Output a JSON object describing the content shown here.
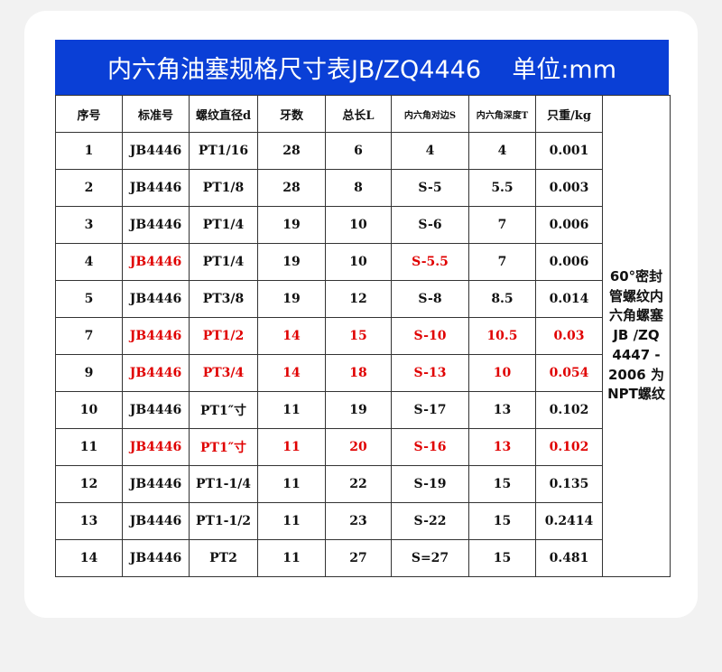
{
  "title": "内六角油塞规格尺寸表JB/ZQ4446    单位:mm",
  "headers": [
    "序号",
    "标准号",
    "螺纹直径d",
    "牙数",
    "总长L",
    "内六角对边S",
    "内六角深度T",
    "只重/kg"
  ],
  "note": "60°密封管螺纹内六角螺塞 JB /ZQ 4447 - 2006 为NPT螺纹",
  "highlight_color": "#e00000",
  "rows": [
    {
      "cells": [
        "1",
        "JB4446",
        "PT1/16",
        "28",
        "6",
        "4",
        "4",
        "0.001"
      ],
      "red": []
    },
    {
      "cells": [
        "2",
        "JB4446",
        "PT1/8",
        "28",
        "8",
        "S-5",
        "5.5",
        "0.003"
      ],
      "red": []
    },
    {
      "cells": [
        "3",
        "JB4446",
        "PT1/4",
        "19",
        "10",
        "S-6",
        "7",
        "0.006"
      ],
      "red": []
    },
    {
      "cells": [
        "4",
        "JB4446",
        "PT1/4",
        "19",
        "10",
        "S-5.5",
        "7",
        "0.006"
      ],
      "red": [
        1,
        5
      ]
    },
    {
      "cells": [
        "5",
        "JB4446",
        "PT3/8",
        "19",
        "12",
        "S-8",
        "8.5",
        "0.014"
      ],
      "red": []
    },
    {
      "cells": [
        "7",
        "JB4446",
        "PT1/2",
        "14",
        "15",
        "S-10",
        "10.5",
        "0.03"
      ],
      "red": [
        1,
        2,
        3,
        4,
        5,
        6,
        7
      ]
    },
    {
      "cells": [
        "9",
        "JB4446",
        "PT3/4",
        "14",
        "18",
        "S-13",
        "10",
        "0.054"
      ],
      "red": [
        1,
        2,
        3,
        4,
        5,
        6,
        7
      ]
    },
    {
      "cells": [
        "10",
        "JB4446",
        "PT1″寸",
        "11",
        "19",
        "S-17",
        "13",
        "0.102"
      ],
      "red": []
    },
    {
      "cells": [
        "11",
        "JB4446",
        "PT1″寸",
        "11",
        "20",
        "S-16",
        "13",
        "0.102"
      ],
      "red": [
        1,
        2,
        3,
        4,
        5,
        6,
        7
      ]
    },
    {
      "cells": [
        "12",
        "JB4446",
        "PT1-1/4",
        "11",
        "22",
        "S-19",
        "15",
        "0.135"
      ],
      "red": []
    },
    {
      "cells": [
        "13",
        "JB4446",
        "PT1-1/2",
        "11",
        "23",
        "S-22",
        "15",
        "0.2414"
      ],
      "red": []
    },
    {
      "cells": [
        "14",
        "JB4446",
        "PT2",
        "11",
        "27",
        "S=27",
        "15",
        "0.481"
      ],
      "red": []
    }
  ]
}
